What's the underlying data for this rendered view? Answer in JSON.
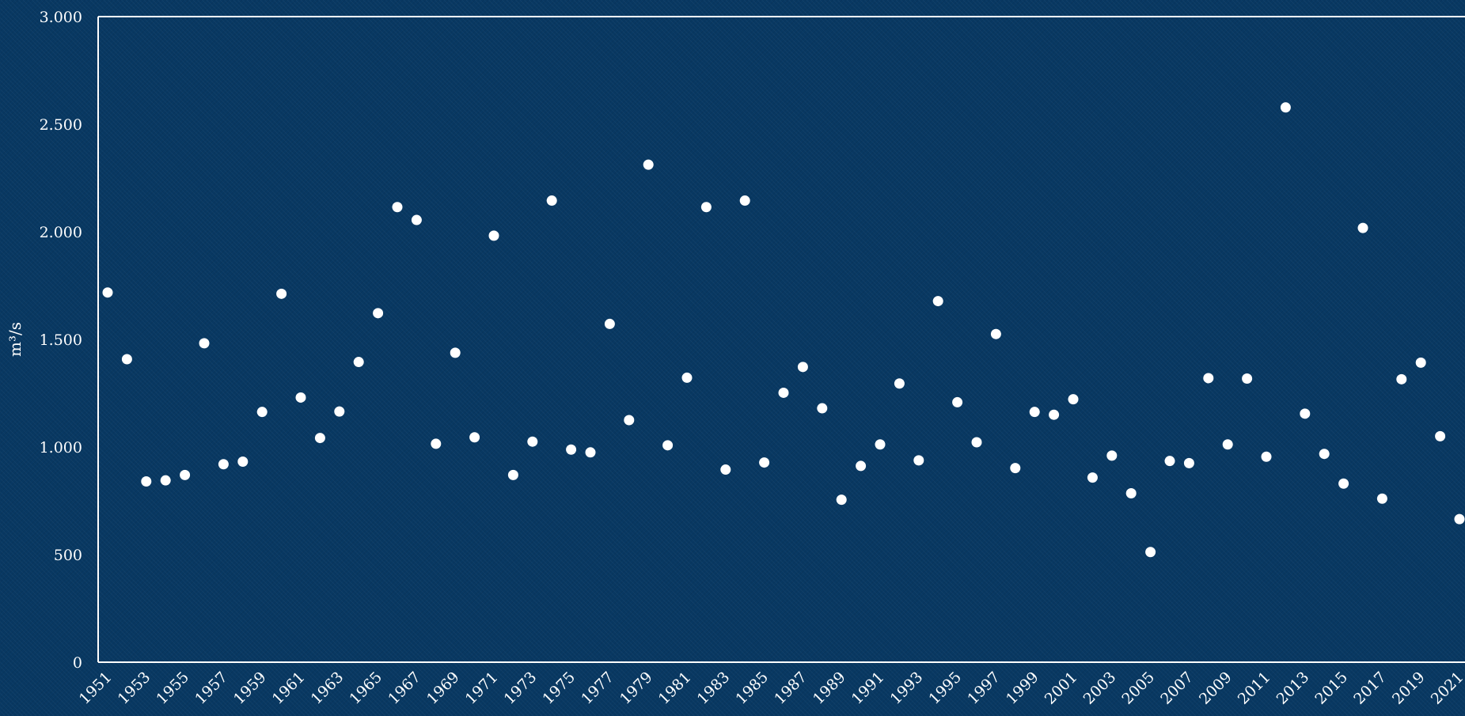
{
  "chart_data": {
    "type": "scatter",
    "title": "",
    "xlabel": "",
    "ylabel": "m³/s",
    "ylim": [
      0,
      3000
    ],
    "y_ticks": [
      {
        "value": 0,
        "label": "0"
      },
      {
        "value": 500,
        "label": "500"
      },
      {
        "value": 1000,
        "label": "1.000"
      },
      {
        "value": 1500,
        "label": "1.500"
      },
      {
        "value": 2000,
        "label": "2.000"
      },
      {
        "value": 2500,
        "label": "2.500"
      },
      {
        "value": 3000,
        "label": "3.000"
      }
    ],
    "x_tick_labels": [
      "1951",
      "1953",
      "1955",
      "1957",
      "1959",
      "1961",
      "1963",
      "1965",
      "1967",
      "1969",
      "1971",
      "1973",
      "1975",
      "1977",
      "1979",
      "1981",
      "1983",
      "1985",
      "1987",
      "1989",
      "1991",
      "1993",
      "1995",
      "1997",
      "1999",
      "2001",
      "2003",
      "2005",
      "2007",
      "2009",
      "2011",
      "2013",
      "2015",
      "2017",
      "2019",
      "2021"
    ],
    "x": [
      1951,
      1952,
      1953,
      1954,
      1955,
      1956,
      1957,
      1958,
      1959,
      1960,
      1961,
      1962,
      1963,
      1964,
      1965,
      1966,
      1967,
      1968,
      1969,
      1970,
      1971,
      1972,
      1973,
      1974,
      1975,
      1976,
      1977,
      1978,
      1979,
      1980,
      1981,
      1982,
      1983,
      1984,
      1985,
      1986,
      1987,
      1988,
      1989,
      1990,
      1991,
      1992,
      1993,
      1994,
      1995,
      1996,
      1997,
      1998,
      1999,
      2000,
      2001,
      2002,
      2003,
      2004,
      2005,
      2006,
      2007,
      2008,
      2009,
      2010,
      2011,
      2012,
      2013,
      2014,
      2015,
      2016,
      2017,
      2018,
      2019,
      2020,
      2021
    ],
    "y": [
      1718,
      1408,
      840,
      845,
      870,
      1482,
      920,
      932,
      1163,
      1712,
      1230,
      1042,
      1165,
      1395,
      1622,
      2115,
      2055,
      1015,
      1438,
      1045,
      1982,
      870,
      1025,
      2145,
      988,
      975,
      1572,
      1125,
      2312,
      1008,
      1322,
      2115,
      895,
      2145,
      928,
      1252,
      1372,
      1180,
      755,
      912,
      1012,
      1295,
      938,
      1678,
      1208,
      1022,
      1525,
      902,
      1163,
      1150,
      1222,
      858,
      960,
      785,
      512,
      935,
      925,
      1320,
      1012,
      1318,
      955,
      2578,
      1155,
      968,
      830,
      2018,
      760,
      1315,
      1392,
      1050,
      665
    ],
    "grid": false,
    "legend": "none"
  }
}
